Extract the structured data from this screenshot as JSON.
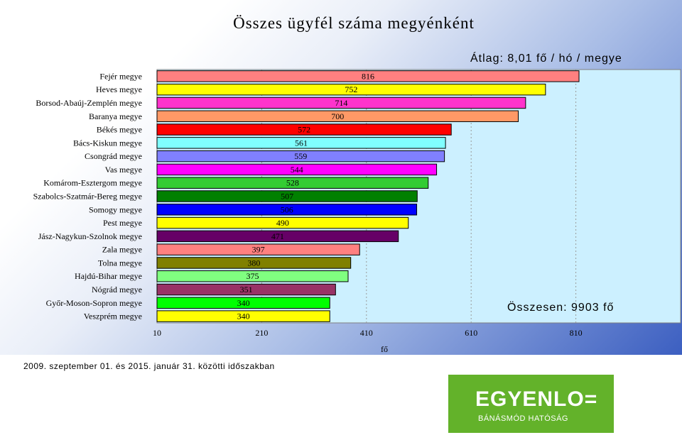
{
  "chart_data": {
    "type": "bar",
    "orientation": "horizontal",
    "title": "Összes ügyfél száma megyénként",
    "xlabel": "fő",
    "ylabel": "",
    "xlim": [
      10,
      1010
    ],
    "xticks": [
      10,
      210,
      410,
      610,
      810
    ],
    "grid": true,
    "categories": [
      "Fejér megye",
      "Heves megye",
      "Borsod-Abaúj-Zemplén megye",
      "Baranya megye",
      "Békés megye",
      "Bács-Kiskun megye",
      "Csongrád megye",
      "Vas megye",
      "Komárom-Esztergom megye",
      "Szabolcs-Szatmár-Bereg megye",
      "Somogy megye",
      "Pest megye",
      "Jász-Nagykun-Szolnok megye",
      "Zala megye",
      "Tolna megye",
      "Hajdú-Bihar megye",
      "Nógrád megye",
      "Győr-Moson-Sopron megye",
      "Veszprém megye"
    ],
    "values": [
      816,
      752,
      714,
      700,
      572,
      561,
      559,
      544,
      528,
      507,
      506,
      490,
      471,
      397,
      380,
      375,
      351,
      340,
      340
    ],
    "colors": [
      "#ff8080",
      "#ffff00",
      "#ff33cc",
      "#ff9966",
      "#ff0000",
      "#80ffff",
      "#8080ff",
      "#ff00ff",
      "#33cc33",
      "#008000",
      "#0000ff",
      "#ffff00",
      "#660066",
      "#ff8080",
      "#808000",
      "#80ff80",
      "#993366",
      "#00ff00",
      "#ffff00"
    ]
  },
  "annotations": {
    "average": "Átlag: 8,01 fő / hó / megye",
    "total": "Összesen: 9903 fő",
    "period": "2009. szeptember 01. és 2015. január 31. közötti időszakban"
  },
  "logo": {
    "name": "EGYENLO=",
    "subtitle": "BÁNÁSMÓD HATÓSÁG",
    "color": "#63b22a"
  }
}
